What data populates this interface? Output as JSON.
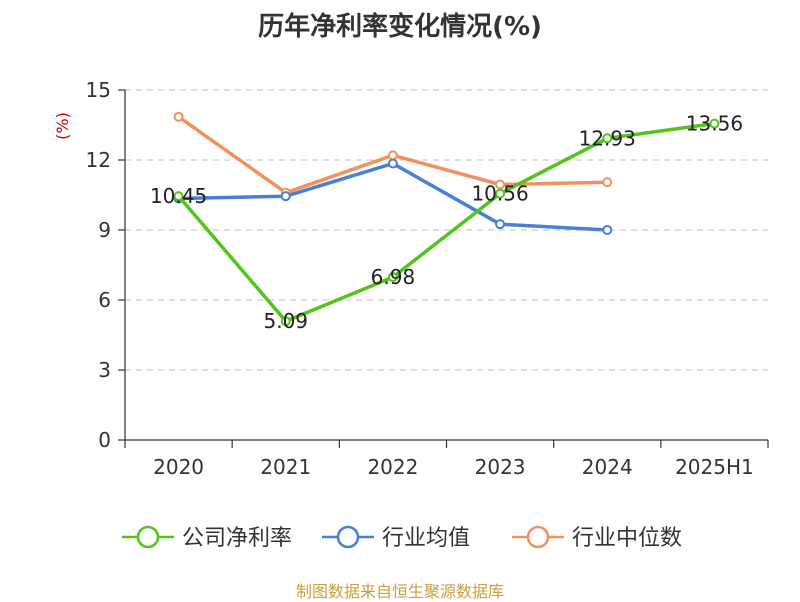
{
  "title": "历年净利率变化情况(%)",
  "source": "制图数据来自恒生聚源数据库",
  "chart_data": {
    "type": "line",
    "title": "历年净利率变化情况(%)",
    "ylabel": "(%)",
    "xlabel": "",
    "categories": [
      "2020",
      "2021",
      "2022",
      "2023",
      "2024",
      "2025H1"
    ],
    "ylim": [
      0,
      15
    ],
    "yticks": [
      0,
      3,
      6,
      9,
      12,
      15
    ],
    "grid": true,
    "legend_position": "bottom",
    "series": [
      {
        "name": "公司净利率",
        "color": "#52c41a",
        "values": [
          10.45,
          5.09,
          6.98,
          10.56,
          12.93,
          13.56
        ],
        "labels": [
          "10.45",
          "5.09",
          "6.98",
          "10.56",
          "12.93",
          "13.56"
        ]
      },
      {
        "name": "行业均值",
        "color": "#4a7fd6",
        "values": [
          10.35,
          10.45,
          11.85,
          9.25,
          9.0,
          null
        ]
      },
      {
        "name": "行业中位数",
        "color": "#f39060",
        "values": [
          13.85,
          10.6,
          12.2,
          10.95,
          11.05,
          null
        ]
      }
    ]
  }
}
